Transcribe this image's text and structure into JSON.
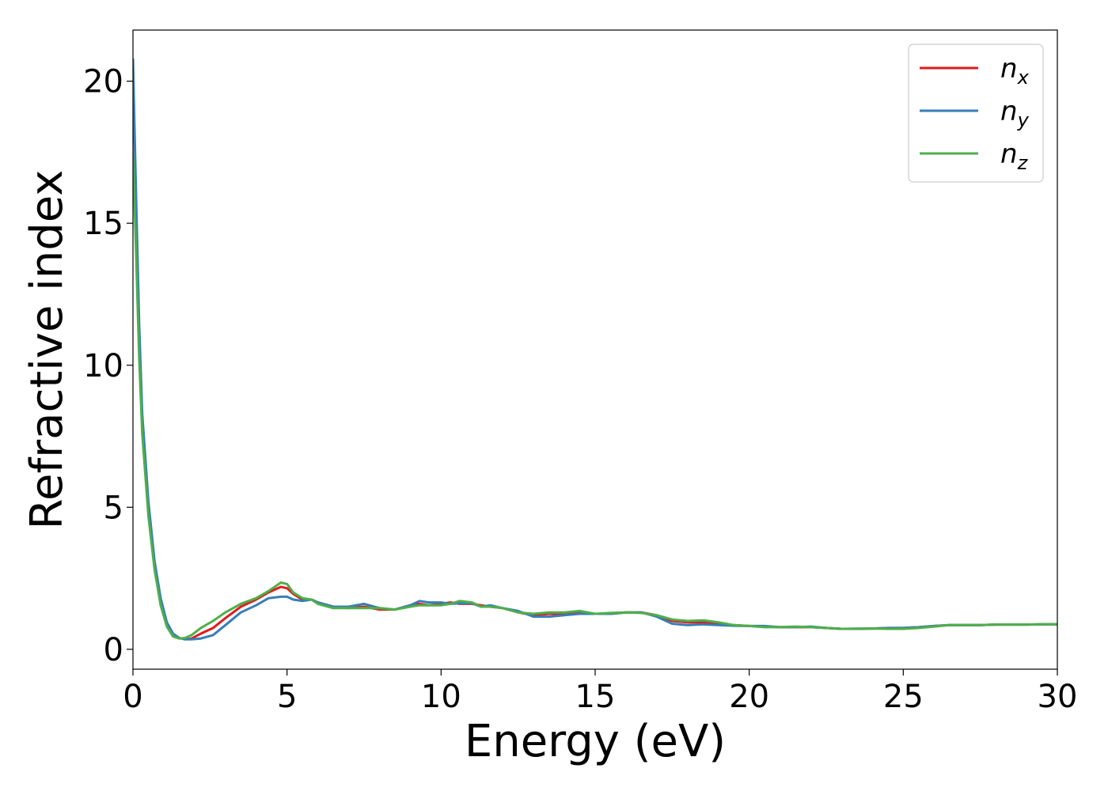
{
  "chart_data": {
    "type": "line",
    "title": "",
    "xlabel": "Energy (eV)",
    "ylabel": "Refractive index",
    "xlim": [
      0,
      30
    ],
    "ylim": [
      -0.7,
      21.8
    ],
    "xticks": [
      0,
      5,
      10,
      15,
      20,
      25,
      30
    ],
    "yticks": [
      0,
      5,
      10,
      15,
      20
    ],
    "grid": false,
    "legend_position": "top-right",
    "series": [
      {
        "name": "n_x",
        "legend_base": "n",
        "legend_sub": "x",
        "color": "#e41a1c",
        "x": [
          0,
          0.1,
          0.2,
          0.3,
          0.5,
          0.7,
          0.9,
          1.1,
          1.3,
          1.5,
          1.7,
          1.9,
          2.2,
          2.6,
          3.0,
          3.5,
          4.0,
          4.4,
          4.8,
          5.0,
          5.2,
          5.5,
          5.8,
          6.0,
          6.5,
          7.0,
          7.5,
          8.0,
          8.5,
          9.0,
          9.3,
          9.6,
          10.0,
          10.3,
          10.6,
          11.0,
          11.3,
          11.6,
          12.0,
          12.5,
          13.0,
          13.5,
          14.0,
          14.5,
          15.0,
          15.5,
          16.0,
          16.5,
          17.0,
          17.5,
          18.0,
          18.5,
          19.0,
          19.5,
          20.0,
          20.5,
          21.0,
          21.5,
          22.0,
          22.5,
          23.0,
          23.5,
          24.0,
          24.5,
          25.0,
          25.5,
          26.0,
          26.5,
          27.0,
          27.5,
          28.0,
          28.5,
          29.0,
          29.5,
          30.0
        ],
        "y": [
          20.5,
          15.5,
          11.0,
          8.0,
          5.0,
          3.0,
          1.7,
          0.9,
          0.55,
          0.4,
          0.35,
          0.38,
          0.55,
          0.75,
          1.1,
          1.5,
          1.75,
          2.0,
          2.2,
          2.15,
          1.95,
          1.75,
          1.75,
          1.65,
          1.5,
          1.45,
          1.5,
          1.4,
          1.4,
          1.55,
          1.6,
          1.55,
          1.6,
          1.65,
          1.6,
          1.6,
          1.55,
          1.5,
          1.45,
          1.3,
          1.2,
          1.25,
          1.25,
          1.3,
          1.25,
          1.25,
          1.3,
          1.3,
          1.2,
          1.0,
          0.95,
          0.95,
          0.9,
          0.85,
          0.82,
          0.8,
          0.78,
          0.78,
          0.78,
          0.75,
          0.72,
          0.72,
          0.73,
          0.75,
          0.75,
          0.78,
          0.82,
          0.85,
          0.85,
          0.85,
          0.87,
          0.87,
          0.87,
          0.88,
          0.88
        ]
      },
      {
        "name": "n_y",
        "legend_base": "n",
        "legend_sub": "y",
        "color": "#377eb8",
        "x": [
          0,
          0.1,
          0.2,
          0.3,
          0.5,
          0.7,
          0.9,
          1.1,
          1.3,
          1.5,
          1.7,
          1.9,
          2.2,
          2.6,
          3.0,
          3.5,
          4.0,
          4.4,
          4.8,
          5.0,
          5.2,
          5.5,
          5.8,
          6.0,
          6.5,
          7.0,
          7.5,
          8.0,
          8.5,
          9.0,
          9.3,
          9.6,
          10.0,
          10.3,
          10.6,
          11.0,
          11.3,
          11.6,
          12.0,
          12.5,
          13.0,
          13.5,
          14.0,
          14.5,
          15.0,
          15.5,
          16.0,
          16.5,
          17.0,
          17.5,
          18.0,
          18.5,
          19.0,
          19.5,
          20.0,
          20.5,
          21.0,
          21.5,
          22.0,
          22.5,
          23.0,
          23.5,
          24.0,
          24.5,
          25.0,
          25.5,
          26.0,
          26.5,
          27.0,
          27.5,
          28.0,
          28.5,
          29.0,
          29.5,
          30.0
        ],
        "y": [
          20.8,
          16.0,
          11.5,
          8.3,
          5.2,
          3.1,
          1.8,
          0.95,
          0.55,
          0.4,
          0.35,
          0.35,
          0.38,
          0.5,
          0.85,
          1.3,
          1.55,
          1.8,
          1.85,
          1.85,
          1.75,
          1.7,
          1.75,
          1.65,
          1.5,
          1.5,
          1.6,
          1.45,
          1.4,
          1.55,
          1.7,
          1.65,
          1.65,
          1.6,
          1.62,
          1.62,
          1.5,
          1.55,
          1.45,
          1.35,
          1.15,
          1.15,
          1.2,
          1.25,
          1.25,
          1.25,
          1.3,
          1.3,
          1.15,
          0.9,
          0.85,
          0.88,
          0.85,
          0.83,
          0.82,
          0.82,
          0.78,
          0.78,
          0.8,
          0.75,
          0.72,
          0.72,
          0.73,
          0.75,
          0.75,
          0.78,
          0.82,
          0.85,
          0.85,
          0.85,
          0.87,
          0.87,
          0.87,
          0.88,
          0.88
        ]
      },
      {
        "name": "n_z",
        "legend_base": "n",
        "legend_sub": "z",
        "color": "#4daf4a",
        "x": [
          0,
          0.1,
          0.2,
          0.3,
          0.5,
          0.7,
          0.9,
          1.1,
          1.3,
          1.5,
          1.7,
          1.9,
          2.2,
          2.6,
          3.0,
          3.5,
          4.0,
          4.4,
          4.8,
          5.0,
          5.2,
          5.5,
          5.8,
          6.0,
          6.5,
          7.0,
          7.5,
          8.0,
          8.5,
          9.0,
          9.3,
          9.6,
          10.0,
          10.3,
          10.6,
          11.0,
          11.3,
          11.6,
          12.0,
          12.5,
          13.0,
          13.5,
          14.0,
          14.5,
          15.0,
          15.5,
          16.0,
          16.5,
          17.0,
          17.5,
          18.0,
          18.5,
          19.0,
          19.5,
          20.0,
          20.5,
          21.0,
          21.5,
          22.0,
          22.5,
          23.0,
          23.5,
          24.0,
          24.5,
          25.0,
          25.5,
          26.0,
          26.5,
          27.0,
          27.5,
          28.0,
          28.5,
          29.0,
          29.5,
          30.0
        ],
        "y": [
          17.5,
          14.0,
          10.3,
          7.6,
          4.7,
          2.8,
          1.55,
          0.8,
          0.45,
          0.38,
          0.4,
          0.5,
          0.75,
          1.0,
          1.3,
          1.6,
          1.8,
          2.05,
          2.35,
          2.3,
          2.0,
          1.8,
          1.75,
          1.6,
          1.45,
          1.45,
          1.45,
          1.45,
          1.4,
          1.5,
          1.55,
          1.55,
          1.55,
          1.6,
          1.7,
          1.65,
          1.5,
          1.5,
          1.45,
          1.3,
          1.25,
          1.3,
          1.3,
          1.35,
          1.25,
          1.28,
          1.3,
          1.28,
          1.2,
          1.05,
          1.0,
          1.02,
          0.95,
          0.85,
          0.82,
          0.78,
          0.78,
          0.8,
          0.78,
          0.75,
          0.72,
          0.73,
          0.73,
          0.72,
          0.72,
          0.75,
          0.8,
          0.85,
          0.85,
          0.85,
          0.87,
          0.87,
          0.87,
          0.88,
          0.88
        ]
      }
    ]
  }
}
